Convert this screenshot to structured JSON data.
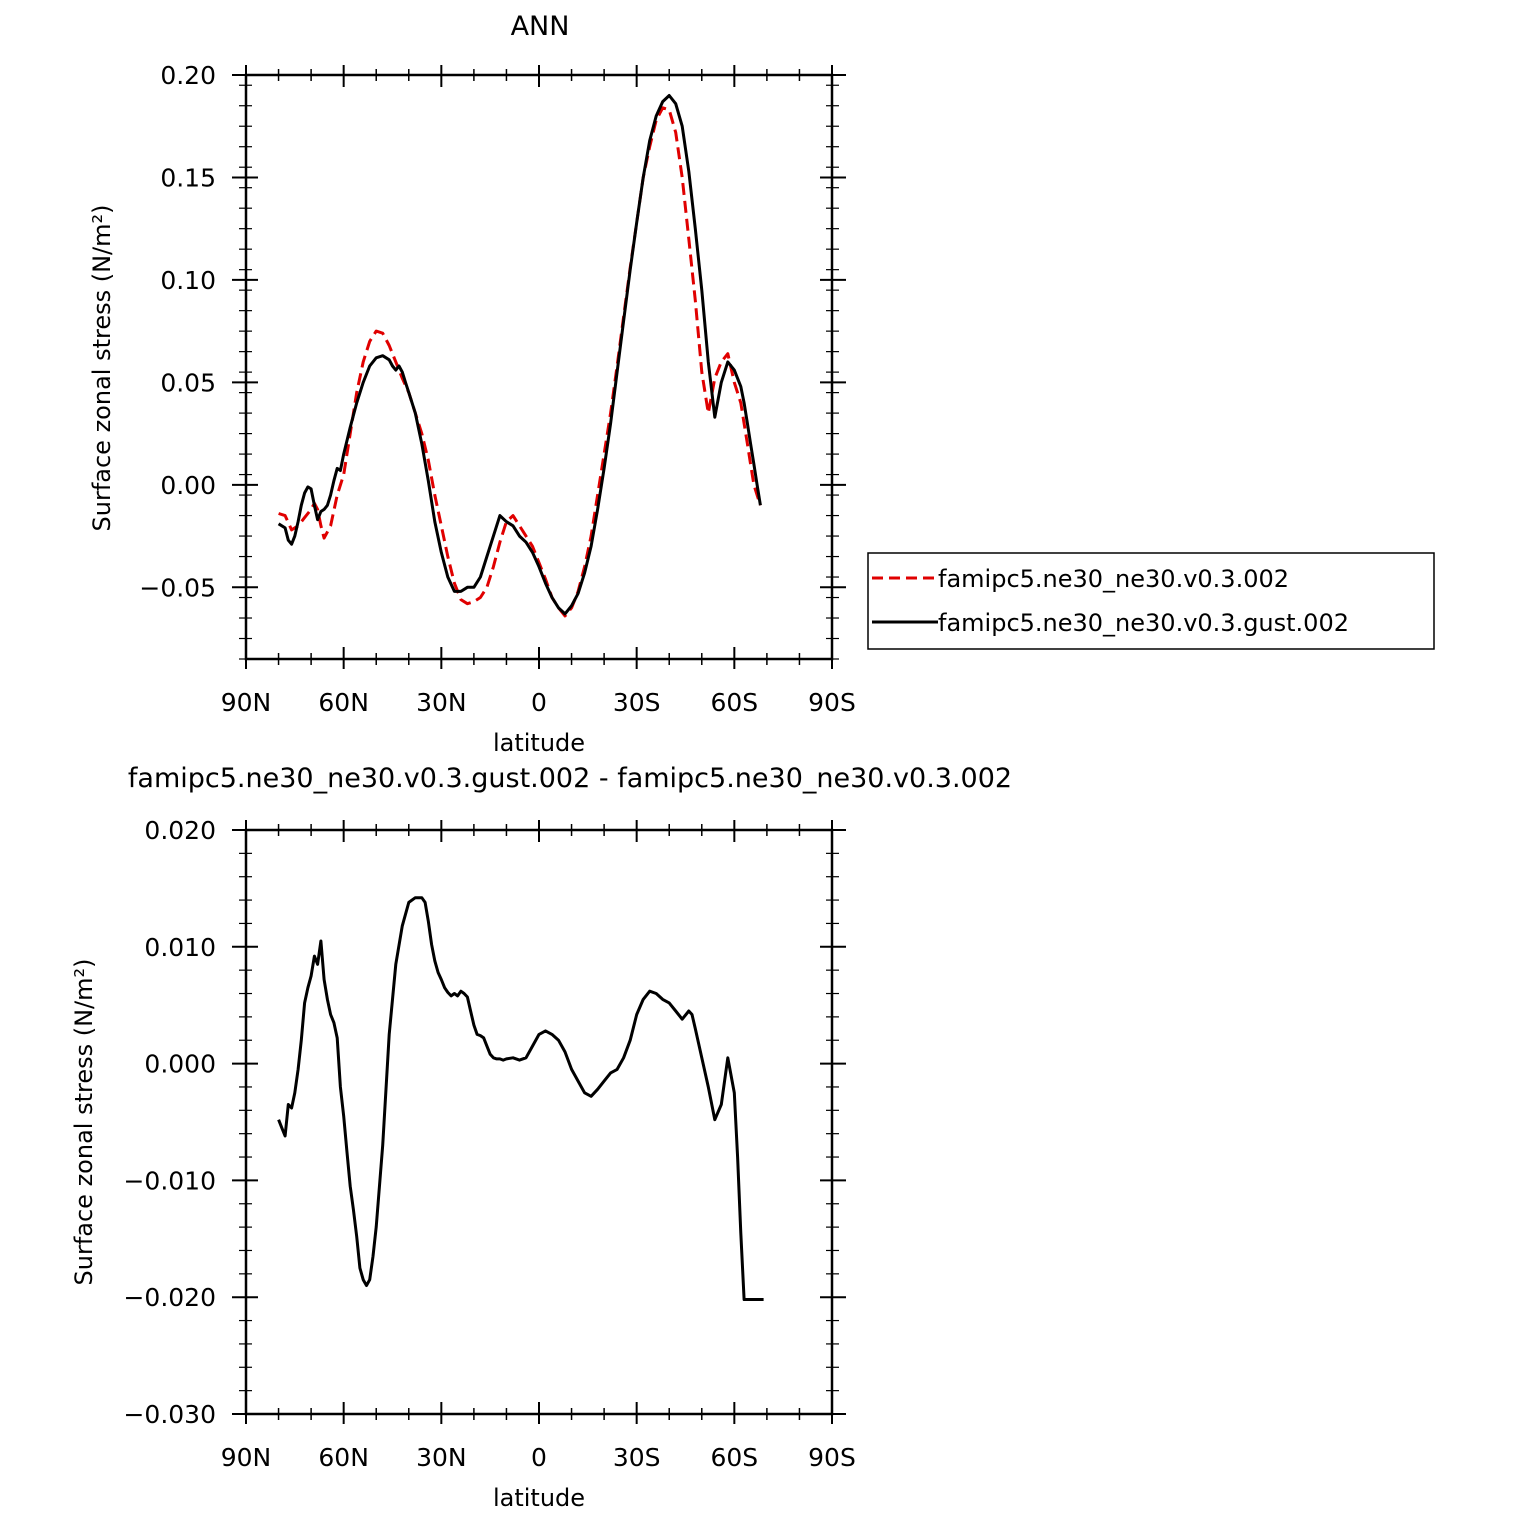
{
  "figure": {
    "top_title": "ANN",
    "bottom_title": "famipc5.ne30_ne30.v0.3.gust.002 - famipc5.ne30_ne30.v0.3.002"
  },
  "legend": {
    "entries": [
      {
        "label": "famipc5.ne30_ne30.v0.3.002",
        "color": "#e00000",
        "style": "dashed"
      },
      {
        "label": "famipc5.ne30_ne30.v0.3.gust.002",
        "color": "#000000",
        "style": "solid"
      }
    ]
  },
  "chart_data": [
    {
      "type": "line",
      "title": "ANN",
      "xlabel": "latitude",
      "ylabel": "Surface zonal stress (N/m²)",
      "xlim": [
        90,
        -90
      ],
      "ylim": [
        -0.085,
        0.2
      ],
      "xticks": [
        {
          "value": 90,
          "label": "90N"
        },
        {
          "value": 60,
          "label": "60N"
        },
        {
          "value": 30,
          "label": "30N"
        },
        {
          "value": 0,
          "label": "0"
        },
        {
          "value": -30,
          "label": "30S"
        },
        {
          "value": -60,
          "label": "60S"
        },
        {
          "value": -90,
          "label": "90S"
        }
      ],
      "yticks": [
        {
          "value": 0.2,
          "label": "0.20"
        },
        {
          "value": 0.15,
          "label": "0.15"
        },
        {
          "value": 0.1,
          "label": "0.10"
        },
        {
          "value": 0.05,
          "label": "0.05"
        },
        {
          "value": 0.0,
          "label": "0.00"
        },
        {
          "value": -0.05,
          "label": "−0.05"
        }
      ],
      "series": [
        {
          "name": "famipc5.ne30_ne30.v0.3.002",
          "color": "#e00000",
          "style": "dashed",
          "x": [
            80,
            78,
            76,
            74,
            72,
            70,
            69,
            68,
            67,
            66,
            64,
            62,
            60,
            58,
            56,
            54,
            52,
            50,
            48,
            46,
            44,
            42,
            40,
            38,
            36,
            34,
            32,
            30,
            28,
            26,
            24,
            22,
            20,
            18,
            16,
            14,
            12,
            10,
            8,
            6,
            4,
            2,
            0,
            -2,
            -4,
            -6,
            -8,
            -10,
            -12,
            -14,
            -16,
            -18,
            -20,
            -22,
            -24,
            -26,
            -28,
            -30,
            -32,
            -34,
            -36,
            -38,
            -40,
            -42,
            -44,
            -46,
            -48,
            -50,
            -52,
            -54,
            -56,
            -58,
            -60,
            -62,
            -63,
            -64,
            -65,
            -66,
            -67,
            -68
          ],
          "values": [
            -0.014,
            -0.015,
            -0.022,
            -0.02,
            -0.016,
            -0.012,
            -0.009,
            -0.012,
            -0.02,
            -0.026,
            -0.02,
            -0.005,
            0.005,
            0.025,
            0.045,
            0.06,
            0.07,
            0.075,
            0.074,
            0.068,
            0.06,
            0.052,
            0.045,
            0.035,
            0.025,
            0.012,
            -0.005,
            -0.02,
            -0.035,
            -0.048,
            -0.056,
            -0.058,
            -0.057,
            -0.055,
            -0.05,
            -0.04,
            -0.028,
            -0.018,
            -0.015,
            -0.02,
            -0.025,
            -0.03,
            -0.038,
            -0.046,
            -0.055,
            -0.06,
            -0.064,
            -0.06,
            -0.052,
            -0.04,
            -0.025,
            -0.005,
            0.015,
            0.035,
            0.058,
            0.082,
            0.106,
            0.128,
            0.15,
            0.165,
            0.178,
            0.184,
            0.183,
            0.172,
            0.15,
            0.12,
            0.09,
            0.055,
            0.035,
            0.052,
            0.06,
            0.064,
            0.05,
            0.04,
            0.03,
            0.02,
            0.01,
            0.0,
            -0.005,
            -0.01
          ],
          "x_visible_max": -68,
          "note_series_end": ""
        },
        {
          "name": "famipc5.ne30_ne30.v0.3.gust.002",
          "color": "#000000",
          "style": "solid",
          "x": [
            80,
            78,
            77,
            76,
            75,
            74,
            73,
            72,
            71,
            70,
            69,
            68,
            67,
            66,
            65,
            64,
            63,
            62,
            61,
            60,
            58,
            56,
            54,
            52,
            50,
            48,
            46,
            45,
            44,
            43,
            42,
            41,
            40,
            38,
            36,
            34,
            32,
            30,
            28,
            26,
            24,
            22,
            20,
            18,
            16,
            14,
            12,
            10,
            8,
            6,
            4,
            2,
            0,
            -2,
            -4,
            -6,
            -8,
            -10,
            -12,
            -14,
            -16,
            -18,
            -20,
            -22,
            -24,
            -26,
            -28,
            -30,
            -32,
            -34,
            -36,
            -38,
            -40,
            -42,
            -44,
            -46,
            -48,
            -50,
            -52,
            -54,
            -56,
            -58,
            -60,
            -62,
            -63,
            -64,
            -65,
            -66,
            -67,
            -68
          ],
          "values": [
            -0.019,
            -0.021,
            -0.027,
            -0.029,
            -0.025,
            -0.018,
            -0.01,
            -0.004,
            -0.001,
            -0.002,
            -0.01,
            -0.017,
            -0.013,
            -0.012,
            -0.01,
            -0.005,
            0.002,
            0.008,
            0.007,
            0.015,
            0.028,
            0.04,
            0.05,
            0.058,
            0.062,
            0.063,
            0.061,
            0.058,
            0.056,
            0.058,
            0.055,
            0.05,
            0.045,
            0.035,
            0.02,
            0.002,
            -0.018,
            -0.033,
            -0.045,
            -0.052,
            -0.052,
            -0.05,
            -0.05,
            -0.045,
            -0.035,
            -0.025,
            -0.015,
            -0.018,
            -0.02,
            -0.025,
            -0.028,
            -0.033,
            -0.04,
            -0.048,
            -0.055,
            -0.06,
            -0.063,
            -0.059,
            -0.053,
            -0.043,
            -0.03,
            -0.012,
            0.008,
            0.03,
            0.055,
            0.08,
            0.105,
            0.128,
            0.15,
            0.168,
            0.18,
            0.187,
            0.19,
            0.186,
            0.175,
            0.153,
            0.125,
            0.095,
            0.06,
            0.033,
            0.05,
            0.06,
            0.056,
            0.048,
            0.04,
            0.03,
            0.02,
            0.01,
            0.0,
            -0.01
          ]
        }
      ]
    },
    {
      "type": "line",
      "title": "famipc5.ne30_ne30.v0.3.gust.002 - famipc5.ne30_ne30.v0.3.002",
      "xlabel": "latitude",
      "ylabel": "Surface zonal stress (N/m²)",
      "xlim": [
        90,
        -90
      ],
      "ylim": [
        -0.03,
        0.02
      ],
      "xticks": [
        {
          "value": 90,
          "label": "90N"
        },
        {
          "value": 60,
          "label": "60N"
        },
        {
          "value": 30,
          "label": "30N"
        },
        {
          "value": 0,
          "label": "0"
        },
        {
          "value": -30,
          "label": "30S"
        },
        {
          "value": -60,
          "label": "60S"
        },
        {
          "value": -90,
          "label": "90S"
        }
      ],
      "yticks": [
        {
          "value": 0.02,
          "label": "0.020"
        },
        {
          "value": 0.01,
          "label": "0.010"
        },
        {
          "value": 0.0,
          "label": "0.000"
        },
        {
          "value": -0.01,
          "label": "−0.010"
        },
        {
          "value": -0.02,
          "label": "−0.020"
        },
        {
          "value": -0.03,
          "label": "−0.030"
        }
      ],
      "series": [
        {
          "color": "#000000",
          "style": "solid",
          "x": [
            80,
            79,
            78,
            77,
            76,
            75,
            74,
            73,
            72,
            71,
            70,
            69,
            68,
            67,
            66,
            65,
            64,
            63,
            62,
            61,
            60,
            59,
            58,
            57,
            56,
            55,
            54,
            53,
            52,
            51,
            50,
            48,
            46,
            44,
            42,
            40,
            38,
            36,
            35,
            34,
            33,
            32,
            31,
            30,
            29,
            28,
            27,
            26,
            25,
            24,
            23,
            22,
            21,
            20,
            19,
            18,
            17,
            16,
            15,
            14,
            13,
            12,
            11,
            10,
            8,
            6,
            4,
            2,
            0,
            -2,
            -4,
            -6,
            -8,
            -10,
            -12,
            -14,
            -16,
            -18,
            -20,
            -22,
            -24,
            -26,
            -28,
            -30,
            -32,
            -34,
            -36,
            -38,
            -40,
            -42,
            -44,
            -46,
            -47,
            -48,
            -50,
            -52,
            -54,
            -56,
            -58,
            -60,
            -61,
            -62,
            -63,
            -64,
            -65,
            -66,
            -67,
            -68,
            -69
          ],
          "values": [
            -0.0048,
            -0.0055,
            -0.0062,
            -0.0035,
            -0.0038,
            -0.0025,
            -0.0005,
            0.002,
            0.0052,
            0.0065,
            0.0075,
            0.0092,
            0.0085,
            0.0105,
            0.0072,
            0.0055,
            0.0042,
            0.0035,
            0.0022,
            -0.002,
            -0.0045,
            -0.0075,
            -0.0105,
            -0.0125,
            -0.0148,
            -0.0175,
            -0.0185,
            -0.019,
            -0.0185,
            -0.0165,
            -0.014,
            -0.007,
            0.0025,
            0.0085,
            0.0118,
            0.0138,
            0.0142,
            0.0142,
            0.0138,
            0.0122,
            0.0102,
            0.0088,
            0.0078,
            0.0072,
            0.0065,
            0.0061,
            0.0058,
            0.006,
            0.0058,
            0.0062,
            0.006,
            0.0057,
            0.0045,
            0.0033,
            0.0025,
            0.0024,
            0.0022,
            0.0015,
            0.0008,
            0.0005,
            0.0004,
            0.0004,
            0.0003,
            0.0004,
            0.0005,
            0.0003,
            0.0005,
            0.0015,
            0.0025,
            0.0028,
            0.0025,
            0.002,
            0.001,
            -0.0005,
            -0.0015,
            -0.0025,
            -0.0028,
            -0.0022,
            -0.0015,
            -0.0008,
            -0.0005,
            0.0005,
            0.002,
            0.0042,
            0.0055,
            0.0062,
            0.006,
            0.0055,
            0.0052,
            0.0045,
            0.0038,
            0.0045,
            0.0042,
            0.003,
            0.0005,
            -0.002,
            -0.0048,
            -0.0035,
            0.0005,
            -0.0025,
            -0.008,
            -0.0145,
            -0.0202,
            -0.0202,
            -0.0202,
            -0.0202,
            -0.0202,
            -0.0202,
            -0.0202
          ],
          "draw_until": -69
        }
      ]
    }
  ]
}
